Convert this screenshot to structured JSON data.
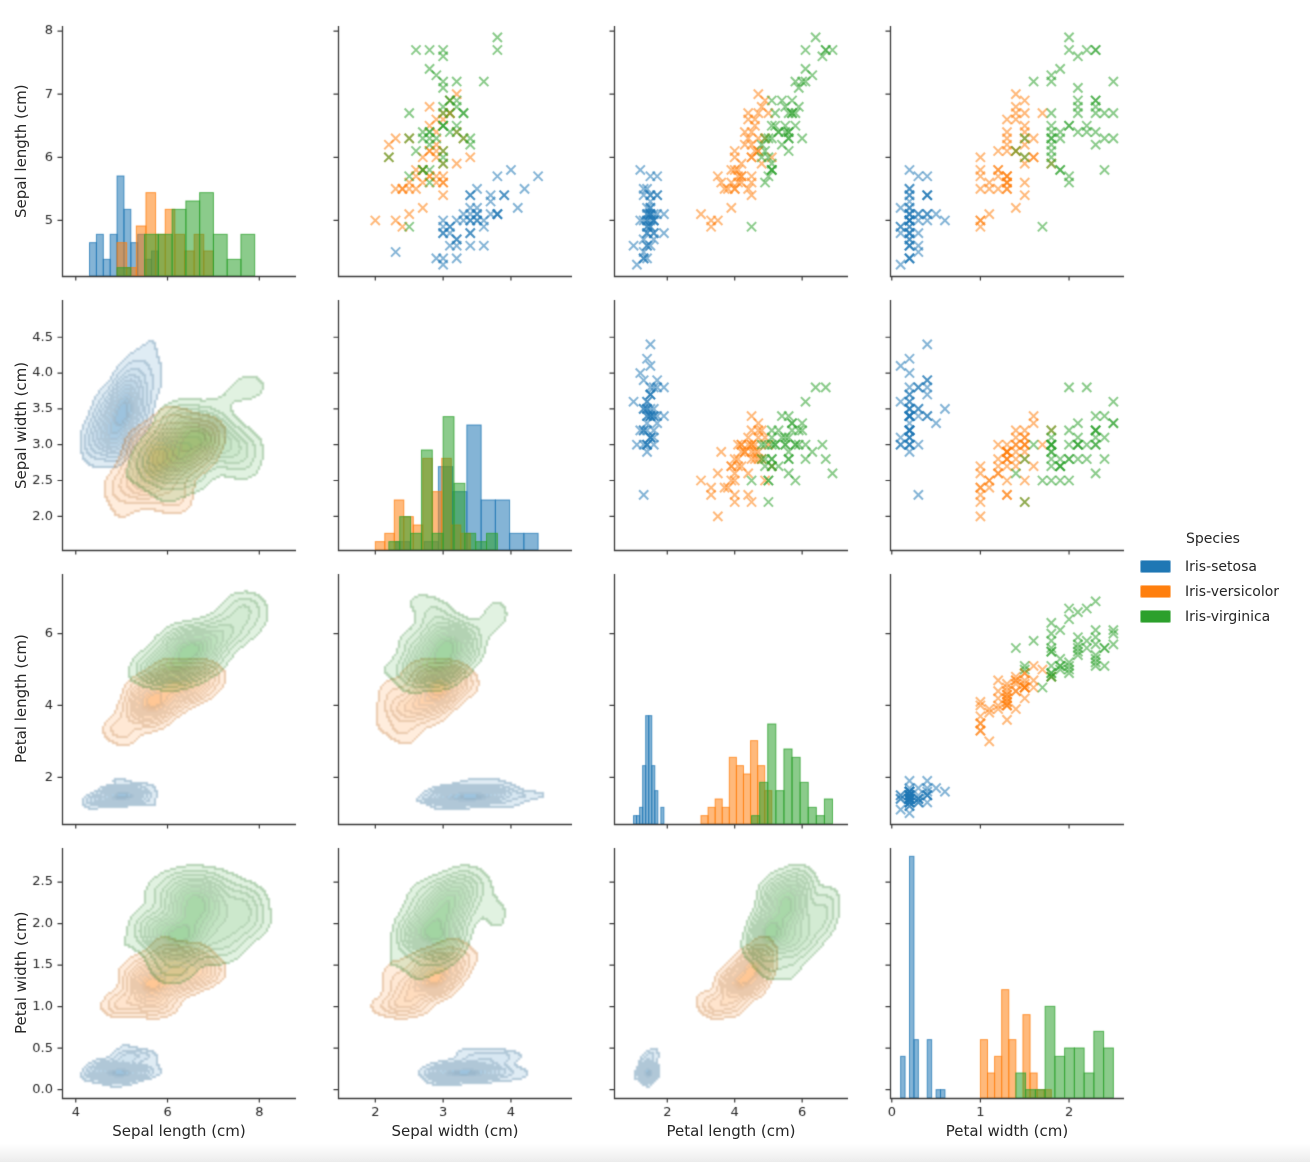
{
  "chart_data": {
    "type": "scatter",
    "variant": "pairplot-matrix",
    "title": "",
    "panel_types": {
      "upper_triangle": "scatter-x-markers",
      "diagonal": "histogram",
      "lower_triangle": "kde-filled-contours"
    },
    "variables": [
      {
        "key": "sepal_length",
        "label": "Sepal length (cm)"
      },
      {
        "key": "sepal_width",
        "label": "Sepal width (cm)"
      },
      {
        "key": "petal_length",
        "label": "Petal length (cm)"
      },
      {
        "key": "petal_width",
        "label": "Petal width (cm)"
      }
    ],
    "x_ranges": {
      "sepal_length": [
        3.7,
        8.8
      ],
      "sepal_width": [
        1.45,
        4.9
      ],
      "petal_length": [
        0.42,
        7.36
      ],
      "petal_width": [
        -0.02,
        2.62
      ]
    },
    "y_ranges": {
      "sepal_length": [
        4.12,
        8.08
      ],
      "sepal_width": [
        1.53,
        5.02
      ],
      "petal_length": [
        0.7,
        7.66
      ],
      "petal_width": [
        -0.1,
        2.91
      ]
    },
    "x_ticks": {
      "sepal_length": {
        "values": [
          4,
          6,
          8
        ],
        "labels": [
          "4",
          "6",
          "8"
        ]
      },
      "sepal_width": {
        "values": [
          2,
          3,
          4
        ],
        "labels": [
          "2",
          "3",
          "4"
        ]
      },
      "petal_length": {
        "values": [
          2,
          4,
          6
        ],
        "labels": [
          "2",
          "4",
          "6"
        ]
      },
      "petal_width": {
        "values": [
          0,
          1,
          2
        ],
        "labels": [
          "0",
          "1",
          "2"
        ]
      }
    },
    "y_ticks": {
      "sepal_length": {
        "values": [
          5,
          6,
          7,
          8
        ],
        "labels": [
          "5",
          "6",
          "7",
          "8"
        ]
      },
      "sepal_width": {
        "values": [
          2.0,
          2.5,
          3.0,
          3.5,
          4.0,
          4.5
        ],
        "labels": [
          "2.0",
          "2.5",
          "3.0",
          "3.5",
          "4.0",
          "4.5"
        ]
      },
      "petal_length": {
        "values": [
          2,
          4,
          6
        ],
        "labels": [
          "2",
          "4",
          "6"
        ]
      },
      "petal_width": {
        "values": [
          0.0,
          0.5,
          1.0,
          1.5,
          2.0,
          2.5
        ],
        "labels": [
          "0.0",
          "0.5",
          "1.0",
          "1.5",
          "2.0",
          "2.5"
        ]
      }
    },
    "diag_count_axis_max": 30,
    "hist_bins_per_species": 10,
    "marker": "x",
    "marker_alpha": 0.55,
    "legend": {
      "title": "Species",
      "entries": [
        {
          "label": "Iris-setosa",
          "color": "#1f77b4"
        },
        {
          "label": "Iris-versicolor",
          "color": "#ff7f0e"
        },
        {
          "label": "Iris-virginica",
          "color": "#2ca02c"
        }
      ]
    },
    "columns": [
      "sepal_length",
      "sepal_width",
      "petal_length",
      "petal_width"
    ],
    "series": [
      {
        "name": "Iris-setosa",
        "color": "#1f77b4",
        "rows": [
          [
            5.1,
            3.5,
            1.4,
            0.2
          ],
          [
            4.9,
            3.0,
            1.4,
            0.2
          ],
          [
            4.7,
            3.2,
            1.3,
            0.2
          ],
          [
            4.6,
            3.1,
            1.5,
            0.2
          ],
          [
            5.0,
            3.6,
            1.4,
            0.2
          ],
          [
            5.4,
            3.9,
            1.7,
            0.4
          ],
          [
            4.6,
            3.4,
            1.4,
            0.3
          ],
          [
            5.0,
            3.4,
            1.5,
            0.2
          ],
          [
            4.4,
            2.9,
            1.4,
            0.2
          ],
          [
            4.9,
            3.1,
            1.5,
            0.1
          ],
          [
            5.4,
            3.7,
            1.5,
            0.2
          ],
          [
            4.8,
            3.4,
            1.6,
            0.2
          ],
          [
            4.8,
            3.0,
            1.4,
            0.1
          ],
          [
            4.3,
            3.0,
            1.1,
            0.1
          ],
          [
            5.8,
            4.0,
            1.2,
            0.2
          ],
          [
            5.7,
            4.4,
            1.5,
            0.4
          ],
          [
            5.4,
            3.9,
            1.3,
            0.4
          ],
          [
            5.1,
            3.5,
            1.4,
            0.3
          ],
          [
            5.7,
            3.8,
            1.7,
            0.3
          ],
          [
            5.1,
            3.8,
            1.5,
            0.3
          ],
          [
            5.4,
            3.4,
            1.7,
            0.2
          ],
          [
            5.1,
            3.7,
            1.5,
            0.4
          ],
          [
            4.6,
            3.6,
            1.0,
            0.2
          ],
          [
            5.1,
            3.3,
            1.7,
            0.5
          ],
          [
            4.8,
            3.4,
            1.9,
            0.2
          ],
          [
            5.0,
            3.0,
            1.6,
            0.2
          ],
          [
            5.0,
            3.4,
            1.6,
            0.4
          ],
          [
            5.2,
            3.5,
            1.5,
            0.2
          ],
          [
            5.2,
            3.4,
            1.4,
            0.2
          ],
          [
            4.7,
            3.2,
            1.6,
            0.2
          ],
          [
            4.8,
            3.1,
            1.6,
            0.2
          ],
          [
            5.4,
            3.4,
            1.5,
            0.4
          ],
          [
            5.2,
            4.1,
            1.5,
            0.1
          ],
          [
            5.5,
            4.2,
            1.4,
            0.2
          ],
          [
            4.9,
            3.1,
            1.5,
            0.2
          ],
          [
            5.0,
            3.2,
            1.2,
            0.2
          ],
          [
            5.5,
            3.5,
            1.3,
            0.2
          ],
          [
            4.9,
            3.6,
            1.4,
            0.1
          ],
          [
            4.4,
            3.0,
            1.3,
            0.2
          ],
          [
            5.1,
            3.4,
            1.5,
            0.2
          ],
          [
            5.0,
            3.5,
            1.3,
            0.3
          ],
          [
            4.5,
            2.3,
            1.3,
            0.3
          ],
          [
            4.4,
            3.2,
            1.3,
            0.2
          ],
          [
            5.0,
            3.5,
            1.6,
            0.6
          ],
          [
            5.1,
            3.8,
            1.9,
            0.4
          ],
          [
            4.8,
            3.0,
            1.4,
            0.3
          ],
          [
            5.1,
            3.8,
            1.6,
            0.2
          ],
          [
            4.6,
            3.2,
            1.4,
            0.2
          ],
          [
            5.3,
            3.7,
            1.5,
            0.2
          ],
          [
            5.0,
            3.3,
            1.4,
            0.2
          ]
        ]
      },
      {
        "name": "Iris-versicolor",
        "color": "#ff7f0e",
        "rows": [
          [
            7.0,
            3.2,
            4.7,
            1.4
          ],
          [
            6.4,
            3.2,
            4.5,
            1.5
          ],
          [
            6.9,
            3.1,
            4.9,
            1.5
          ],
          [
            5.5,
            2.3,
            4.0,
            1.3
          ],
          [
            6.5,
            2.8,
            4.6,
            1.5
          ],
          [
            5.7,
            2.8,
            4.5,
            1.3
          ],
          [
            6.3,
            3.3,
            4.7,
            1.6
          ],
          [
            4.9,
            2.4,
            3.3,
            1.0
          ],
          [
            6.6,
            2.9,
            4.6,
            1.3
          ],
          [
            5.2,
            2.7,
            3.9,
            1.4
          ],
          [
            5.0,
            2.0,
            3.5,
            1.0
          ],
          [
            5.9,
            3.0,
            4.2,
            1.5
          ],
          [
            6.0,
            2.2,
            4.0,
            1.0
          ],
          [
            6.1,
            2.9,
            4.7,
            1.4
          ],
          [
            5.6,
            2.9,
            3.6,
            1.3
          ],
          [
            6.7,
            3.1,
            4.4,
            1.4
          ],
          [
            5.6,
            3.0,
            4.5,
            1.5
          ],
          [
            5.8,
            2.7,
            4.1,
            1.0
          ],
          [
            6.2,
            2.2,
            4.5,
            1.5
          ],
          [
            5.6,
            2.5,
            3.9,
            1.1
          ],
          [
            5.9,
            3.2,
            4.8,
            1.8
          ],
          [
            6.1,
            2.8,
            4.0,
            1.3
          ],
          [
            6.3,
            2.5,
            4.9,
            1.5
          ],
          [
            6.1,
            2.8,
            4.7,
            1.2
          ],
          [
            6.4,
            2.9,
            4.3,
            1.3
          ],
          [
            6.6,
            3.0,
            4.4,
            1.4
          ],
          [
            6.8,
            2.8,
            4.8,
            1.4
          ],
          [
            6.7,
            3.0,
            5.0,
            1.7
          ],
          [
            6.0,
            2.9,
            4.5,
            1.5
          ],
          [
            5.7,
            2.6,
            3.5,
            1.0
          ],
          [
            5.5,
            2.4,
            3.8,
            1.1
          ],
          [
            5.5,
            2.4,
            3.7,
            1.0
          ],
          [
            5.8,
            2.7,
            3.9,
            1.2
          ],
          [
            6.0,
            2.7,
            5.1,
            1.6
          ],
          [
            5.4,
            3.0,
            4.5,
            1.5
          ],
          [
            6.0,
            3.4,
            4.5,
            1.6
          ],
          [
            6.7,
            3.1,
            4.7,
            1.5
          ],
          [
            6.3,
            2.3,
            4.4,
            1.3
          ],
          [
            5.6,
            3.0,
            4.1,
            1.3
          ],
          [
            5.5,
            2.5,
            4.0,
            1.3
          ],
          [
            5.5,
            2.6,
            4.4,
            1.2
          ],
          [
            6.1,
            3.0,
            4.6,
            1.4
          ],
          [
            5.8,
            2.6,
            4.0,
            1.2
          ],
          [
            5.0,
            2.3,
            3.3,
            1.0
          ],
          [
            5.6,
            2.7,
            4.2,
            1.3
          ],
          [
            5.7,
            3.0,
            4.2,
            1.2
          ],
          [
            5.7,
            2.9,
            4.2,
            1.3
          ],
          [
            6.2,
            2.9,
            4.3,
            1.3
          ],
          [
            5.1,
            2.5,
            3.0,
            1.1
          ],
          [
            5.7,
            2.8,
            4.1,
            1.3
          ]
        ]
      },
      {
        "name": "Iris-virginica",
        "color": "#2ca02c",
        "rows": [
          [
            6.3,
            3.3,
            6.0,
            2.5
          ],
          [
            5.8,
            2.7,
            5.1,
            1.9
          ],
          [
            7.1,
            3.0,
            5.9,
            2.1
          ],
          [
            6.3,
            2.9,
            5.6,
            1.8
          ],
          [
            6.5,
            3.0,
            5.8,
            2.2
          ],
          [
            7.6,
            3.0,
            6.6,
            2.1
          ],
          [
            4.9,
            2.5,
            4.5,
            1.7
          ],
          [
            7.3,
            2.9,
            6.3,
            1.8
          ],
          [
            6.7,
            2.5,
            5.8,
            1.8
          ],
          [
            7.2,
            3.6,
            6.1,
            2.5
          ],
          [
            6.5,
            3.2,
            5.1,
            2.0
          ],
          [
            6.4,
            2.7,
            5.3,
            1.9
          ],
          [
            6.8,
            3.0,
            5.5,
            2.1
          ],
          [
            5.7,
            2.5,
            5.0,
            2.0
          ],
          [
            5.8,
            2.8,
            5.1,
            2.4
          ],
          [
            6.4,
            3.2,
            5.3,
            2.3
          ],
          [
            6.5,
            3.0,
            5.5,
            1.8
          ],
          [
            7.7,
            3.8,
            6.7,
            2.2
          ],
          [
            7.7,
            2.6,
            6.9,
            2.3
          ],
          [
            6.0,
            2.2,
            5.0,
            1.5
          ],
          [
            6.9,
            3.2,
            5.7,
            2.3
          ],
          [
            5.6,
            2.8,
            4.9,
            2.0
          ],
          [
            7.7,
            2.8,
            6.7,
            2.0
          ],
          [
            6.3,
            2.7,
            4.9,
            1.8
          ],
          [
            6.7,
            3.3,
            5.7,
            2.1
          ],
          [
            7.2,
            3.2,
            6.0,
            1.8
          ],
          [
            6.2,
            2.8,
            4.8,
            1.8
          ],
          [
            6.1,
            3.0,
            4.9,
            1.8
          ],
          [
            6.4,
            2.8,
            5.6,
            2.1
          ],
          [
            7.2,
            3.0,
            5.8,
            1.6
          ],
          [
            7.4,
            2.8,
            6.1,
            1.9
          ],
          [
            7.9,
            3.8,
            6.4,
            2.0
          ],
          [
            6.4,
            2.8,
            5.6,
            2.2
          ],
          [
            6.3,
            2.8,
            5.1,
            1.5
          ],
          [
            6.1,
            2.6,
            5.6,
            1.4
          ],
          [
            7.7,
            3.0,
            6.1,
            2.3
          ],
          [
            6.3,
            3.4,
            5.6,
            2.4
          ],
          [
            6.4,
            3.1,
            5.5,
            1.8
          ],
          [
            6.0,
            3.0,
            4.8,
            1.8
          ],
          [
            6.9,
            3.1,
            5.4,
            2.1
          ],
          [
            6.7,
            3.1,
            5.6,
            2.4
          ],
          [
            6.9,
            3.1,
            5.1,
            2.3
          ],
          [
            5.8,
            2.7,
            5.1,
            1.9
          ],
          [
            6.8,
            3.2,
            5.9,
            2.3
          ],
          [
            6.7,
            3.3,
            5.7,
            2.5
          ],
          [
            6.7,
            3.0,
            5.2,
            2.3
          ],
          [
            6.3,
            2.5,
            5.0,
            1.9
          ],
          [
            6.5,
            3.0,
            5.2,
            2.0
          ],
          [
            6.2,
            3.4,
            5.4,
            2.3
          ],
          [
            5.9,
            3.0,
            5.1,
            1.8
          ]
        ]
      }
    ]
  }
}
